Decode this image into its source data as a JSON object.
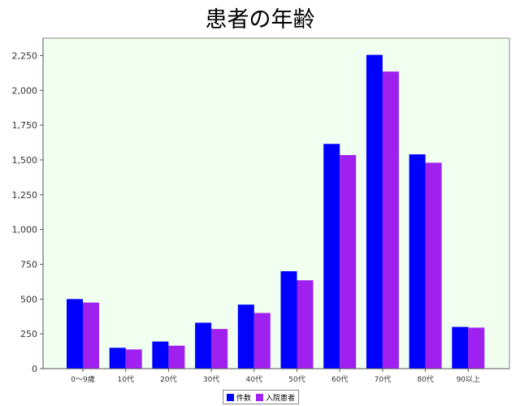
{
  "chart_data": {
    "type": "bar",
    "title": "患者の年齢",
    "categories": [
      "0〜9歳",
      "10代",
      "20代",
      "30代",
      "40代",
      "50代",
      "60代",
      "70代",
      "80代",
      "90以上"
    ],
    "series": [
      {
        "name": "件数",
        "color": "#0000ff",
        "values": [
          500,
          150,
          195,
          330,
          460,
          700,
          1615,
          2255,
          1540,
          300
        ]
      },
      {
        "name": "入院患者",
        "color": "#a020f0",
        "values": [
          475,
          138,
          165,
          285,
          400,
          635,
          1535,
          2135,
          1480,
          295
        ]
      }
    ],
    "ylim": [
      0,
      2375
    ],
    "yticks": [
      0,
      250,
      500,
      750,
      1000,
      1250,
      1500,
      1750,
      2000,
      2250
    ],
    "ytick_labels": [
      "0",
      "250",
      "500",
      "750",
      "1,000",
      "1,250",
      "1,500",
      "1,750",
      "2,000",
      "2,250"
    ],
    "grid": false,
    "legend_position": "bottom-center",
    "plot_background": "#f0fff0"
  }
}
